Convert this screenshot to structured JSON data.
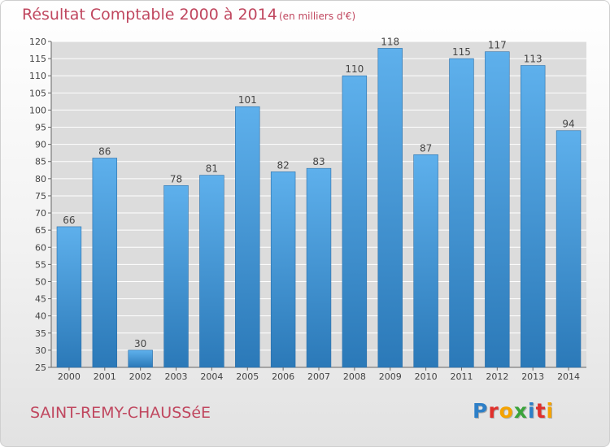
{
  "header": {
    "title": "Résultat Comptable 2000 à 2014",
    "unit": "(en milliers d'€)"
  },
  "footer": {
    "commune": "SAINT-REMY-CHAUSSéE",
    "logo_letters": [
      "P",
      "r",
      "o",
      "x",
      "i",
      "t",
      "i"
    ],
    "logo_colors": [
      "#2e7fc7",
      "#e0302c",
      "#f5a300",
      "#3aa33a",
      "#2e7fc7",
      "#e0302c",
      "#f5a300"
    ]
  },
  "chart_data": {
    "type": "bar",
    "categories": [
      "2000",
      "2001",
      "2002",
      "2003",
      "2004",
      "2005",
      "2006",
      "2007",
      "2008",
      "2009",
      "2010",
      "2011",
      "2012",
      "2013",
      "2014"
    ],
    "values": [
      66,
      86,
      30,
      78,
      81,
      101,
      82,
      83,
      110,
      118,
      87,
      115,
      117,
      113,
      94
    ],
    "title": "Résultat Comptable 2000 à 2014",
    "xlabel": "",
    "ylabel": "",
    "ylim": [
      25,
      120
    ],
    "yticks": [
      25,
      30,
      35,
      40,
      45,
      50,
      55,
      60,
      65,
      70,
      75,
      80,
      85,
      90,
      95,
      100,
      105,
      110,
      115,
      120
    ],
    "grid": true,
    "bar_color_top": "#5eb0ec",
    "bar_color_bottom": "#2b79b8",
    "grid_color": "#ffffff"
  }
}
